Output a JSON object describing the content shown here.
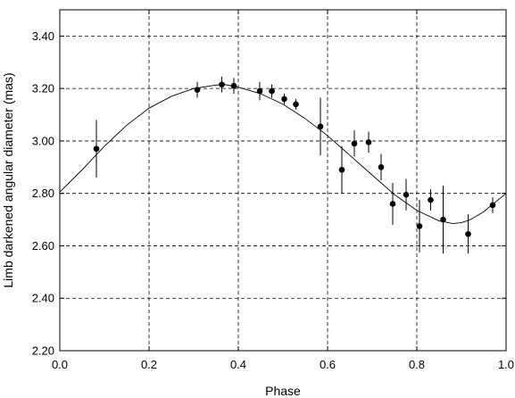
{
  "chart_data": {
    "type": "scatter",
    "title": "",
    "xlabel": "Phase",
    "ylabel": "Limb darkened angular diameter (mas)",
    "xlim": [
      0.0,
      1.0
    ],
    "ylim": [
      2.2,
      3.5
    ],
    "xticks": [
      0.0,
      0.2,
      0.4,
      0.6,
      0.8,
      1.0
    ],
    "xtick_labels": [
      "0.0",
      "0.2",
      "0.4",
      "0.6",
      "0.8",
      "1.0"
    ],
    "yticks": [
      2.2,
      2.4,
      2.6,
      2.8,
      3.0,
      3.2,
      3.4
    ],
    "ytick_labels": [
      "2.20",
      "2.40",
      "2.60",
      "2.80",
      "3.00",
      "3.20",
      "3.40"
    ],
    "grid": true,
    "series": [
      {
        "x": [
          0.082,
          0.308,
          0.363,
          0.39,
          0.448,
          0.475,
          0.503,
          0.529,
          0.584,
          0.632,
          0.66,
          0.692,
          0.72,
          0.746,
          0.776,
          0.806,
          0.831,
          0.859,
          0.915,
          0.97
        ],
        "y": [
          2.97,
          3.195,
          3.215,
          3.21,
          3.19,
          3.19,
          3.16,
          3.14,
          3.055,
          2.89,
          2.99,
          2.995,
          2.9,
          2.76,
          2.795,
          2.675,
          2.775,
          2.7,
          2.645,
          2.755
        ],
        "yerr": [
          0.11,
          0.03,
          0.03,
          0.03,
          0.035,
          0.025,
          0.02,
          0.02,
          0.11,
          0.09,
          0.05,
          0.04,
          0.05,
          0.08,
          0.06,
          0.1,
          0.04,
          0.13,
          0.075,
          0.03
        ]
      }
    ],
    "fit_curve": {
      "x": [
        0.0,
        0.05,
        0.1,
        0.15,
        0.2,
        0.25,
        0.3,
        0.35,
        0.37,
        0.4,
        0.45,
        0.5,
        0.55,
        0.6,
        0.65,
        0.7,
        0.75,
        0.8,
        0.85,
        0.88,
        0.9,
        0.92,
        0.95,
        1.0
      ],
      "y": [
        2.805,
        2.89,
        2.98,
        3.06,
        3.125,
        3.17,
        3.2,
        3.213,
        3.215,
        3.205,
        3.18,
        3.14,
        3.085,
        3.02,
        2.945,
        2.87,
        2.795,
        2.735,
        2.695,
        2.685,
        2.688,
        2.7,
        2.73,
        2.8
      ]
    }
  }
}
